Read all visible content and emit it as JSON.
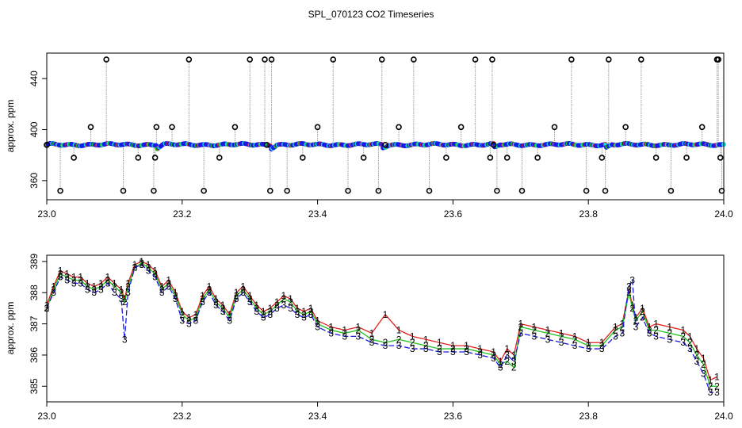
{
  "title": "SPL_070123  CO2 Timeseries",
  "colors": {
    "red": "#e0201c",
    "green": "#1ec21e",
    "blue": "#1a1ae6",
    "cyan": "#22d8e0",
    "grey": "#8a8a8a",
    "black": "#000000"
  },
  "chart_data": [
    {
      "type": "scatter",
      "name": "top-panel",
      "title": "",
      "xlabel": "",
      "ylabel": "approx. ppm",
      "xlim": [
        23.0,
        24.0
      ],
      "ylim": [
        345,
        460
      ],
      "xticks": [
        23.0,
        23.2,
        23.4,
        23.6,
        23.8,
        24.0
      ],
      "xtick_labels": [
        "23.0",
        "23.2",
        "23.4",
        "23.6",
        "23.8",
        "24.0"
      ],
      "yticks": [
        360,
        400,
        440
      ],
      "ytick_labels": [
        "360",
        "400",
        "440"
      ],
      "spike_times": [
        23.0,
        23.02,
        23.04,
        23.065,
        23.088,
        23.113,
        23.135,
        23.158,
        23.16,
        23.162,
        23.185,
        23.21,
        23.232,
        23.255,
        23.278,
        23.3,
        23.322,
        23.325,
        23.33,
        23.332,
        23.355,
        23.378,
        23.4,
        23.423,
        23.445,
        23.468,
        23.49,
        23.495,
        23.5,
        23.52,
        23.542,
        23.565,
        23.59,
        23.612,
        23.633,
        23.655,
        23.658,
        23.66,
        23.665,
        23.68,
        23.702,
        23.725,
        23.75,
        23.775,
        23.797,
        23.82,
        23.825,
        23.83,
        23.855,
        23.878,
        23.9,
        23.922,
        23.945,
        23.968,
        23.99,
        23.992,
        23.995,
        23.997
      ],
      "spike_values": [
        388,
        352,
        378,
        402,
        455,
        352,
        378,
        352,
        378,
        402,
        402,
        455,
        352,
        378,
        402,
        455,
        455,
        388,
        352,
        455,
        352,
        378,
        402,
        455,
        352,
        378,
        352,
        455,
        388,
        402,
        455,
        352,
        378,
        402,
        455,
        378,
        455,
        388,
        352,
        378,
        352,
        378,
        402,
        455,
        352,
        378,
        352,
        455,
        402,
        455,
        378,
        352,
        378,
        402,
        455,
        455,
        378,
        352
      ],
      "baseline": 388.2,
      "marker": "o"
    },
    {
      "type": "line",
      "name": "bottom-panel",
      "title": "",
      "xlabel": "",
      "ylabel": "approx. ppm",
      "xlim": [
        23.0,
        24.0
      ],
      "ylim": [
        384.5,
        389.2
      ],
      "xticks": [
        23.0,
        23.2,
        23.4,
        23.6,
        23.8,
        24.0
      ],
      "xtick_labels": [
        "23.0",
        "23.2",
        "23.4",
        "23.6",
        "23.8",
        "24.0"
      ],
      "yticks": [
        385,
        386,
        387,
        388,
        389
      ],
      "ytick_labels": [
        "385",
        "386",
        "387",
        "388",
        "389"
      ],
      "x": [
        23.0,
        23.01,
        23.02,
        23.03,
        23.04,
        23.05,
        23.06,
        23.07,
        23.08,
        23.09,
        23.1,
        23.11,
        23.115,
        23.12,
        23.13,
        23.14,
        23.15,
        23.16,
        23.17,
        23.18,
        23.19,
        23.2,
        23.21,
        23.22,
        23.23,
        23.24,
        23.25,
        23.26,
        23.27,
        23.28,
        23.29,
        23.3,
        23.31,
        23.32,
        23.33,
        23.34,
        23.35,
        23.36,
        23.37,
        23.38,
        23.39,
        23.4,
        23.42,
        23.44,
        23.46,
        23.48,
        23.5,
        23.52,
        23.54,
        23.56,
        23.58,
        23.6,
        23.62,
        23.64,
        23.66,
        23.67,
        23.68,
        23.69,
        23.7,
        23.72,
        23.74,
        23.76,
        23.78,
        23.8,
        23.82,
        23.84,
        23.85,
        23.86,
        23.865,
        23.87,
        23.88,
        23.89,
        23.9,
        23.92,
        23.94,
        23.95,
        23.96,
        23.97,
        23.98,
        23.99
      ],
      "series": [
        {
          "name": "1",
          "color": "red",
          "label": "1",
          "values": [
            387.6,
            388.2,
            388.7,
            388.6,
            388.5,
            388.5,
            388.3,
            388.2,
            388.3,
            388.5,
            388.3,
            388.1,
            387.8,
            388.3,
            388.9,
            389.0,
            388.9,
            388.7,
            388.2,
            388.4,
            388.0,
            387.4,
            387.2,
            387.3,
            387.9,
            388.2,
            387.8,
            387.6,
            387.3,
            388.0,
            388.2,
            387.9,
            387.6,
            387.4,
            387.5,
            387.7,
            387.9,
            387.8,
            387.5,
            387.4,
            387.5,
            387.1,
            386.9,
            386.8,
            386.9,
            386.7,
            387.3,
            386.8,
            386.6,
            386.5,
            386.4,
            386.3,
            386.3,
            386.2,
            386.1,
            385.8,
            386.2,
            386.0,
            387.0,
            386.9,
            386.8,
            386.7,
            386.6,
            386.4,
            386.4,
            386.9,
            387.0,
            388.1,
            387.6,
            387.2,
            387.5,
            386.9,
            387.0,
            386.9,
            386.8,
            386.6,
            386.2,
            385.9,
            385.2,
            385.3
          ]
        },
        {
          "name": "2",
          "color": "green",
          "label": "2",
          "values": [
            387.5,
            388.1,
            388.6,
            388.5,
            388.4,
            388.4,
            388.2,
            388.1,
            388.2,
            388.4,
            388.2,
            388.0,
            387.7,
            388.2,
            388.8,
            388.95,
            388.8,
            388.6,
            388.1,
            388.3,
            387.9,
            387.3,
            387.1,
            387.2,
            387.8,
            388.1,
            387.7,
            387.5,
            387.2,
            387.9,
            388.1,
            387.8,
            387.5,
            387.3,
            387.4,
            387.6,
            387.8,
            387.7,
            387.4,
            387.3,
            387.4,
            387.0,
            386.8,
            386.7,
            386.8,
            386.5,
            386.4,
            386.5,
            386.4,
            386.3,
            386.2,
            386.2,
            386.2,
            386.1,
            386.0,
            385.7,
            385.8,
            385.6,
            386.9,
            386.8,
            386.7,
            386.6,
            386.5,
            386.3,
            386.3,
            386.8,
            386.9,
            388.0,
            387.5,
            387.1,
            387.4,
            386.8,
            386.8,
            386.7,
            386.6,
            386.4,
            386.0,
            385.7,
            385.0,
            385.0
          ]
        },
        {
          "name": "3",
          "color": "blue",
          "label": "3",
          "values": [
            387.5,
            388.0,
            388.5,
            388.4,
            388.3,
            388.3,
            388.1,
            388.0,
            388.1,
            388.3,
            388.0,
            387.8,
            386.5,
            388.0,
            388.8,
            388.9,
            388.7,
            388.5,
            388.0,
            388.2,
            387.8,
            387.1,
            387.0,
            387.1,
            387.7,
            388.0,
            387.6,
            387.4,
            387.1,
            387.8,
            388.0,
            387.7,
            387.4,
            387.2,
            387.3,
            387.5,
            387.6,
            387.5,
            387.3,
            387.2,
            387.3,
            386.9,
            386.7,
            386.6,
            386.6,
            386.4,
            386.3,
            386.3,
            386.2,
            386.2,
            386.1,
            386.1,
            386.1,
            386.0,
            385.9,
            385.6,
            386.0,
            385.8,
            386.7,
            386.6,
            386.5,
            386.4,
            386.3,
            386.2,
            386.2,
            386.6,
            386.7,
            388.2,
            388.4,
            386.9,
            387.2,
            386.7,
            386.6,
            386.5,
            386.4,
            386.2,
            385.8,
            385.4,
            384.8,
            384.8
          ]
        }
      ]
    }
  ]
}
